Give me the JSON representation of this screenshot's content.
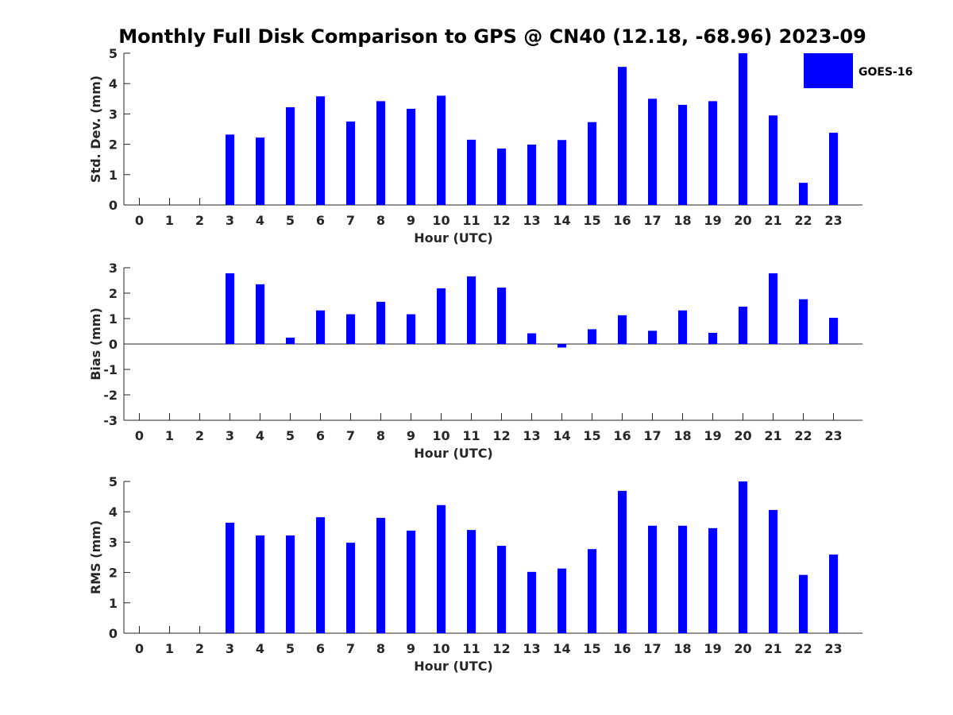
{
  "figure": {
    "title": "Monthly Full Disk Comparison to GPS @ CN40 (12.18, -68.96) 2023-09",
    "legend": {
      "label": "GOES-16",
      "color": "#0000ff",
      "placement": "top-right"
    },
    "bar_color": "#0000ff"
  },
  "chart_data": [
    {
      "type": "bar",
      "title": "Monthly Full Disk Comparison to GPS @ CN40 (12.18, -68.96) 2023-09",
      "xlabel": "Hour (UTC)",
      "ylabel": "Std. Dev. (mm)",
      "categories": [
        "0",
        "1",
        "2",
        "3",
        "4",
        "5",
        "6",
        "7",
        "8",
        "9",
        "10",
        "11",
        "12",
        "13",
        "14",
        "15",
        "16",
        "17",
        "18",
        "19",
        "20",
        "21",
        "22",
        "23"
      ],
      "series": [
        {
          "name": "GOES-16",
          "values": [
            null,
            null,
            null,
            2.32,
            2.22,
            3.22,
            3.58,
            2.75,
            3.42,
            3.17,
            3.6,
            2.15,
            1.86,
            1.99,
            2.14,
            2.73,
            4.55,
            3.5,
            3.3,
            3.42,
            5.0,
            2.95,
            0.73,
            2.38
          ]
        }
      ],
      "ylim": [
        0,
        5
      ],
      "yticks": [
        0,
        1,
        2,
        3,
        4,
        5
      ],
      "grid": false,
      "legend": "top-right"
    },
    {
      "type": "bar",
      "xlabel": "Hour (UTC)",
      "ylabel": "Bias (mm)",
      "categories": [
        "0",
        "1",
        "2",
        "3",
        "4",
        "5",
        "6",
        "7",
        "8",
        "9",
        "10",
        "11",
        "12",
        "13",
        "14",
        "15",
        "16",
        "17",
        "18",
        "19",
        "20",
        "21",
        "22",
        "23"
      ],
      "series": [
        {
          "name": "GOES-16",
          "values": [
            null,
            null,
            null,
            2.78,
            2.35,
            0.25,
            1.32,
            1.17,
            1.66,
            1.17,
            2.19,
            2.66,
            2.22,
            0.42,
            -0.14,
            0.58,
            1.13,
            0.52,
            1.32,
            0.44,
            1.47,
            2.78,
            1.76,
            1.03
          ]
        }
      ],
      "ylim": [
        -3,
        3
      ],
      "yticks": [
        -3,
        -2,
        -1,
        0,
        1,
        2,
        3
      ],
      "grid": false
    },
    {
      "type": "bar",
      "xlabel": "Hour (UTC)",
      "ylabel": "RMS (mm)",
      "categories": [
        "0",
        "1",
        "2",
        "3",
        "4",
        "5",
        "6",
        "7",
        "8",
        "9",
        "10",
        "11",
        "12",
        "13",
        "14",
        "15",
        "16",
        "17",
        "18",
        "19",
        "20",
        "21",
        "22",
        "23"
      ],
      "series": [
        {
          "name": "GOES-16",
          "values": [
            null,
            null,
            null,
            3.64,
            3.22,
            3.22,
            3.82,
            2.98,
            3.8,
            3.38,
            4.22,
            3.4,
            2.88,
            2.02,
            2.13,
            2.77,
            4.69,
            3.54,
            3.54,
            3.46,
            5.0,
            4.06,
            1.92,
            2.59
          ]
        }
      ],
      "ylim": [
        0,
        5
      ],
      "yticks": [
        0,
        1,
        2,
        3,
        4,
        5
      ],
      "grid": false
    }
  ]
}
